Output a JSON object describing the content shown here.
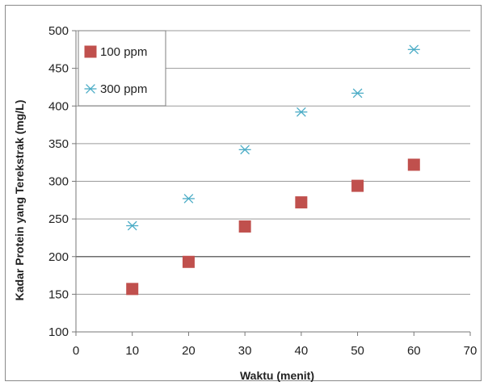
{
  "chart_data": {
    "type": "scatter",
    "xlabel": "Waktu (menit)",
    "ylabel": "Kadar  Protein yang Terekstrak (mg/L)",
    "xlim": [
      0,
      70
    ],
    "ylim": [
      100,
      500
    ],
    "xticks": [
      0,
      10,
      20,
      30,
      40,
      50,
      60,
      70
    ],
    "yticks": [
      100,
      150,
      200,
      250,
      300,
      350,
      400,
      450,
      500
    ],
    "grid": "horizontal",
    "legend_position": "top-left",
    "series": [
      {
        "name": "100 ppm",
        "marker": "square",
        "color": "#c0504d",
        "x": [
          10,
          20,
          30,
          40,
          50,
          60
        ],
        "y": [
          157,
          193,
          240,
          272,
          294,
          322
        ]
      },
      {
        "name": "300 ppm",
        "marker": "asterisk",
        "color": "#4bacc6",
        "x": [
          10,
          20,
          30,
          40,
          50,
          60
        ],
        "y": [
          241,
          277,
          342,
          392,
          417,
          475
        ]
      }
    ]
  }
}
